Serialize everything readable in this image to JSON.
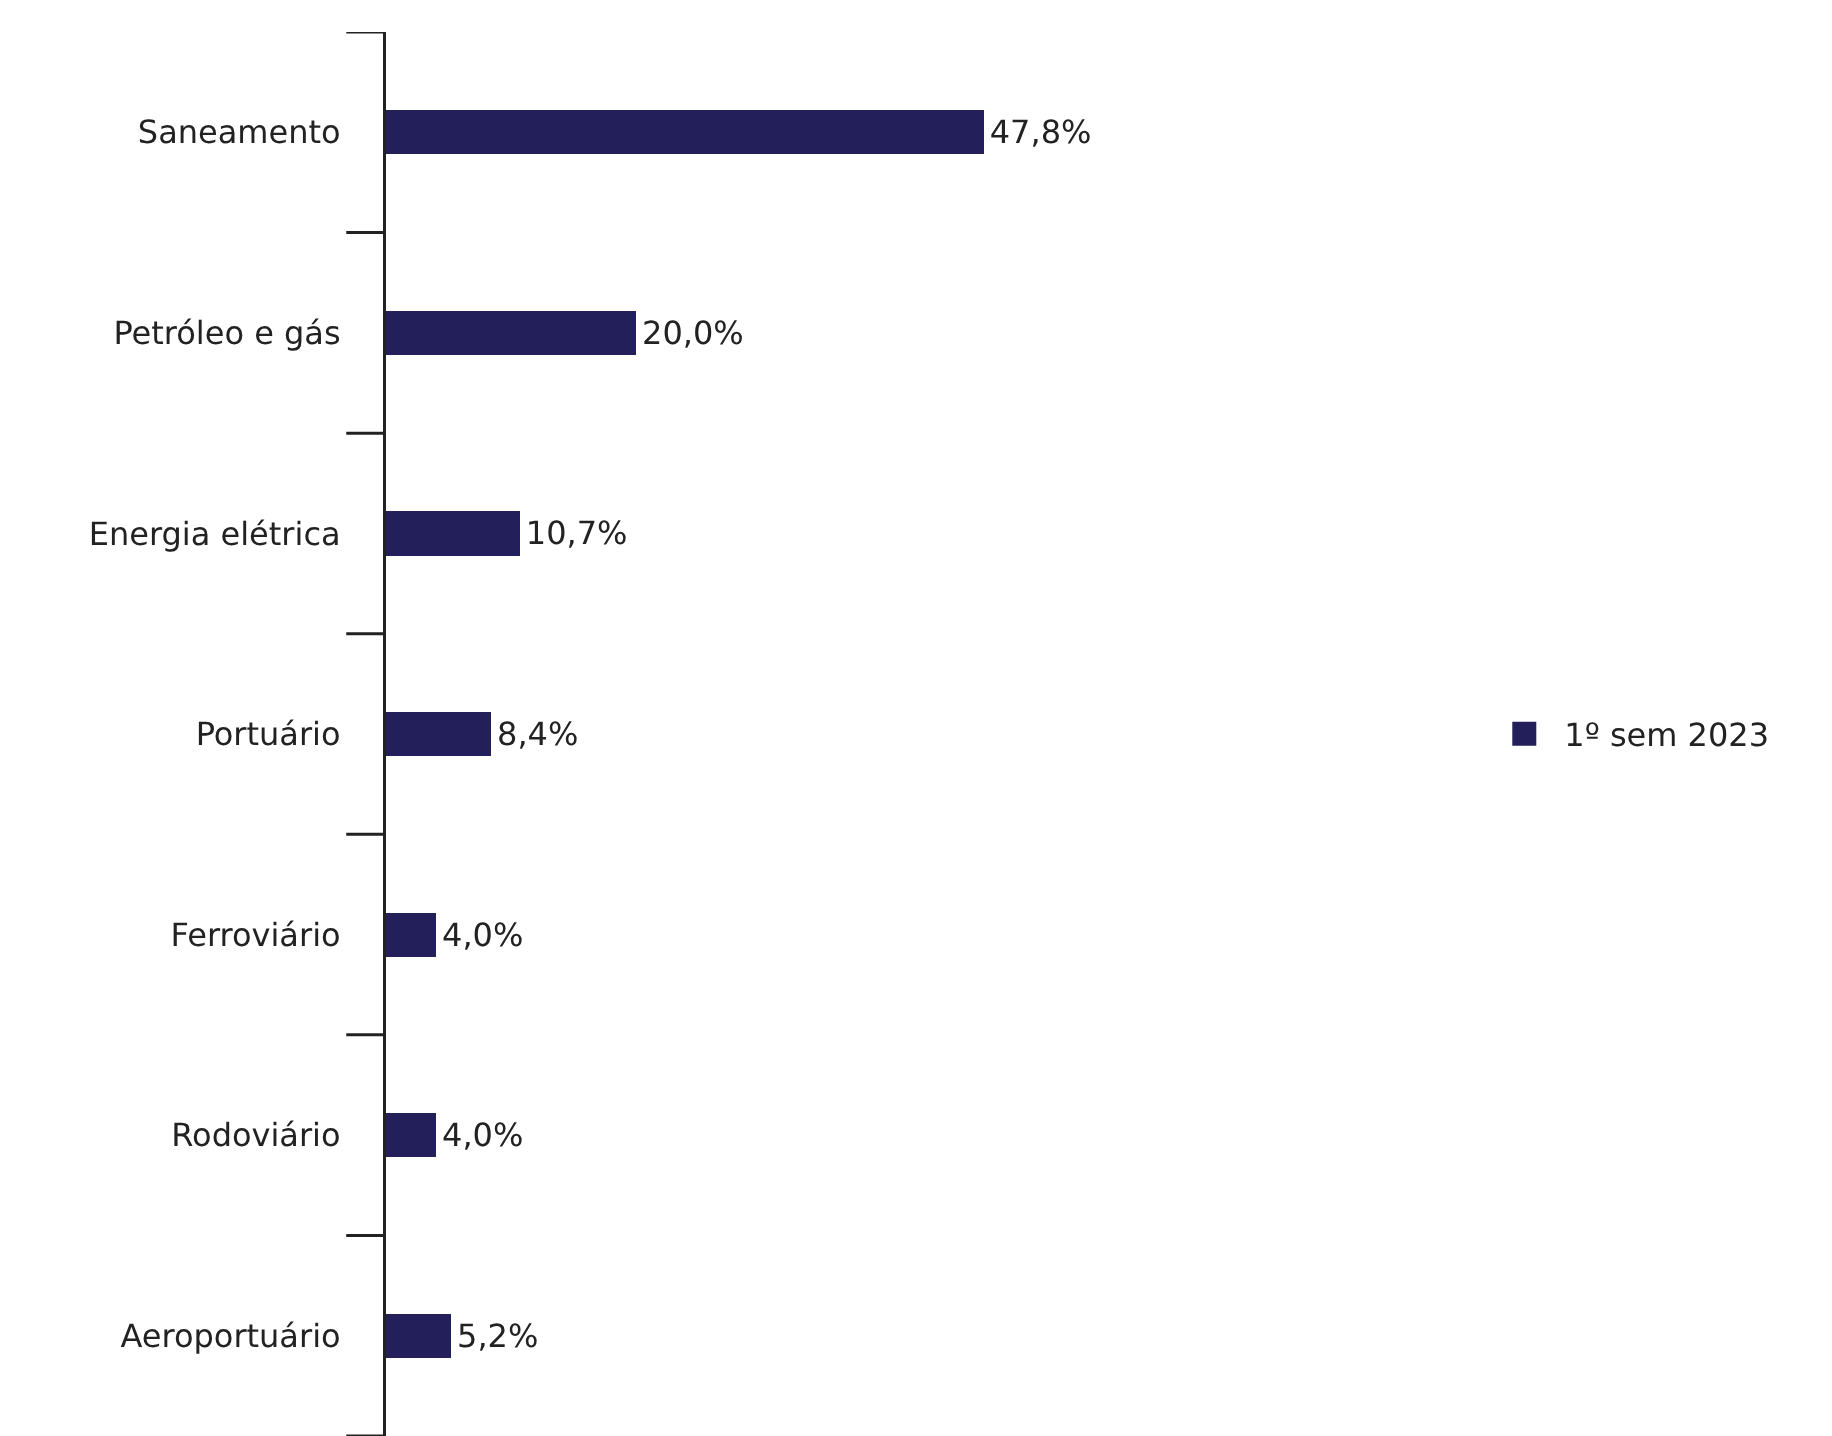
{
  "chart_data": {
    "type": "bar",
    "orientation": "horizontal",
    "categories": [
      "Saneamento",
      "Petróleo e gás",
      "Energia elétrica",
      "Portuário",
      "Ferroviário",
      "Rodoviário",
      "Aeroportuário"
    ],
    "series": [
      {
        "name": "1º sem 2023",
        "color": "#221f5a",
        "values": [
          47.8,
          20.0,
          10.7,
          8.4,
          4.0,
          4.0,
          5.2
        ],
        "value_labels": [
          "47,8%",
          "20,0%",
          "10,7%",
          "8,4%",
          "4,0%",
          "4,0%",
          "5,2%"
        ]
      }
    ],
    "legend": "right",
    "grid": false,
    "tick_labels": "y"
  }
}
